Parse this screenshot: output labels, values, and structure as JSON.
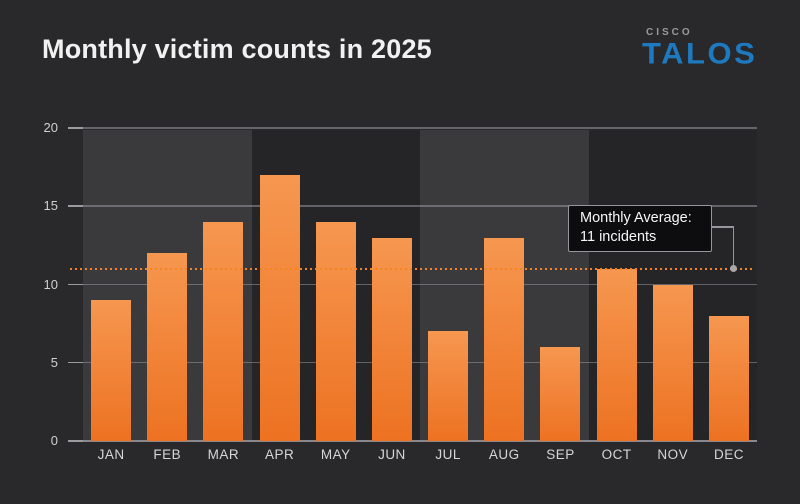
{
  "title": "Monthly victim counts in 2025",
  "brand": {
    "cisco": "CISCO",
    "talos": "TALOS"
  },
  "chart_data": {
    "type": "bar",
    "title": "Monthly victim counts in 2025",
    "categories": [
      "JAN",
      "FEB",
      "MAR",
      "APR",
      "MAY",
      "JUN",
      "JUL",
      "AUG",
      "SEP",
      "OCT",
      "NOV",
      "DEC"
    ],
    "values": [
      9,
      12,
      14,
      17,
      14,
      13,
      7,
      13,
      6,
      11,
      10,
      8
    ],
    "xlabel": "",
    "ylabel": "",
    "ylim": [
      0,
      20
    ],
    "yticks": [
      0,
      5,
      10,
      15,
      20
    ],
    "grid": "horizontal",
    "legend": "none",
    "average_line": {
      "value": 11,
      "style": "dotted",
      "color": "#f5831f"
    },
    "background_bands": {
      "months_per_band": 3,
      "pattern": "alternating-light-dark",
      "light": "#3a3a3d",
      "dark": "#252528"
    },
    "bar_gradient": {
      "top": "#f69750",
      "bottom": "#ed7222"
    }
  },
  "annotation": {
    "line1": "Monthly Average:",
    "line2": "11 incidents"
  },
  "colors": {
    "background": "#29292b",
    "title_text": "#f1f1f1",
    "axis_text": "#d0d0d0",
    "cisco_gray": "#9a9a9a",
    "talos_blue": "#1e7ac0",
    "accent_orange": "#f5831f"
  }
}
